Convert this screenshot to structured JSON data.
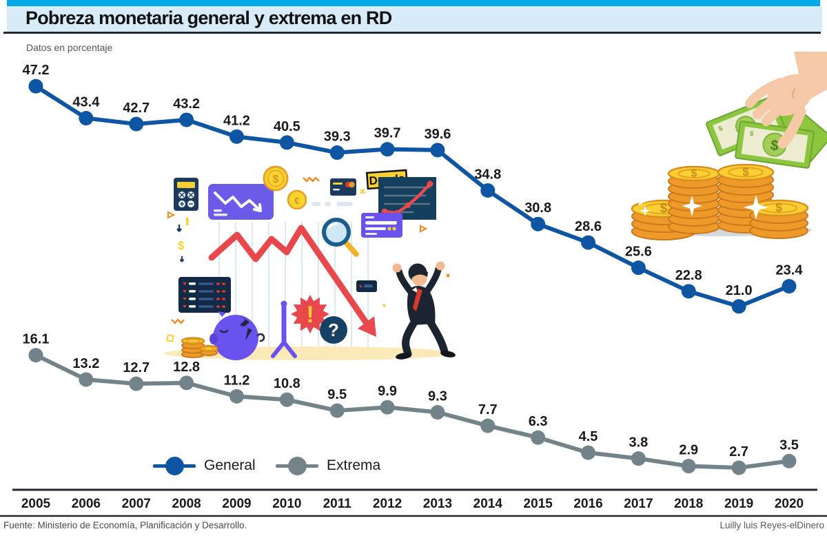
{
  "header": {
    "title": "Pobreza monetaria general y extrema en RD",
    "subtitle": "Datos en porcentaje"
  },
  "chart_data": {
    "type": "line",
    "title": "Pobreza monetaria general y extrema en RD",
    "subtitle": "Datos en porcentaje",
    "unit": "percent",
    "categories": [
      "2005",
      "2006",
      "2007",
      "2008",
      "2009",
      "2010",
      "2011",
      "2012",
      "2013",
      "2014",
      "2015",
      "2016",
      "2017",
      "2018",
      "2019",
      "2020"
    ],
    "series": [
      {
        "name": "General",
        "color": "#0E56A4",
        "values": [
          47.2,
          43.4,
          42.7,
          43.2,
          41.2,
          40.5,
          39.3,
          39.7,
          39.6,
          34.8,
          30.8,
          28.6,
          25.6,
          22.8,
          21.0,
          23.4
        ],
        "labels": [
          "47.2",
          "43.4",
          "42.7",
          "43.2",
          "41.2",
          "40.5",
          "39.3",
          "39.7",
          "39.6",
          "34.8",
          "30.8",
          "28.6",
          "25.6",
          "22.8",
          "21.0",
          "23.4"
        ]
      },
      {
        "name": "Extrema",
        "color": "#72838A",
        "values": [
          16.1,
          13.2,
          12.7,
          12.8,
          11.2,
          10.8,
          9.5,
          9.9,
          9.3,
          7.7,
          6.3,
          4.5,
          3.8,
          2.9,
          2.7,
          3.5
        ],
        "labels": [
          "16.1",
          "13.2",
          "12.7",
          "12.8",
          "11.2",
          "10.8",
          "9.5",
          "9.9",
          "9.3",
          "7.7",
          "6.3",
          "4.5",
          "3.8",
          "2.9",
          "2.7",
          "3.5"
        ]
      }
    ],
    "ylim": [
      0,
      50
    ],
    "grid": false,
    "legend_position": "bottom-center-left",
    "data_labels": true
  },
  "illustration": {
    "deuda_label": "Deuda",
    "exclamation": "!",
    "question_mark": "?",
    "dollar_sign": "$",
    "euro_sign": "€"
  },
  "footer": {
    "source": "Fuente: Ministerio de Economía, Planificación y Desarrollo.",
    "credit": "Luilly luis Reyes-elDinero"
  }
}
